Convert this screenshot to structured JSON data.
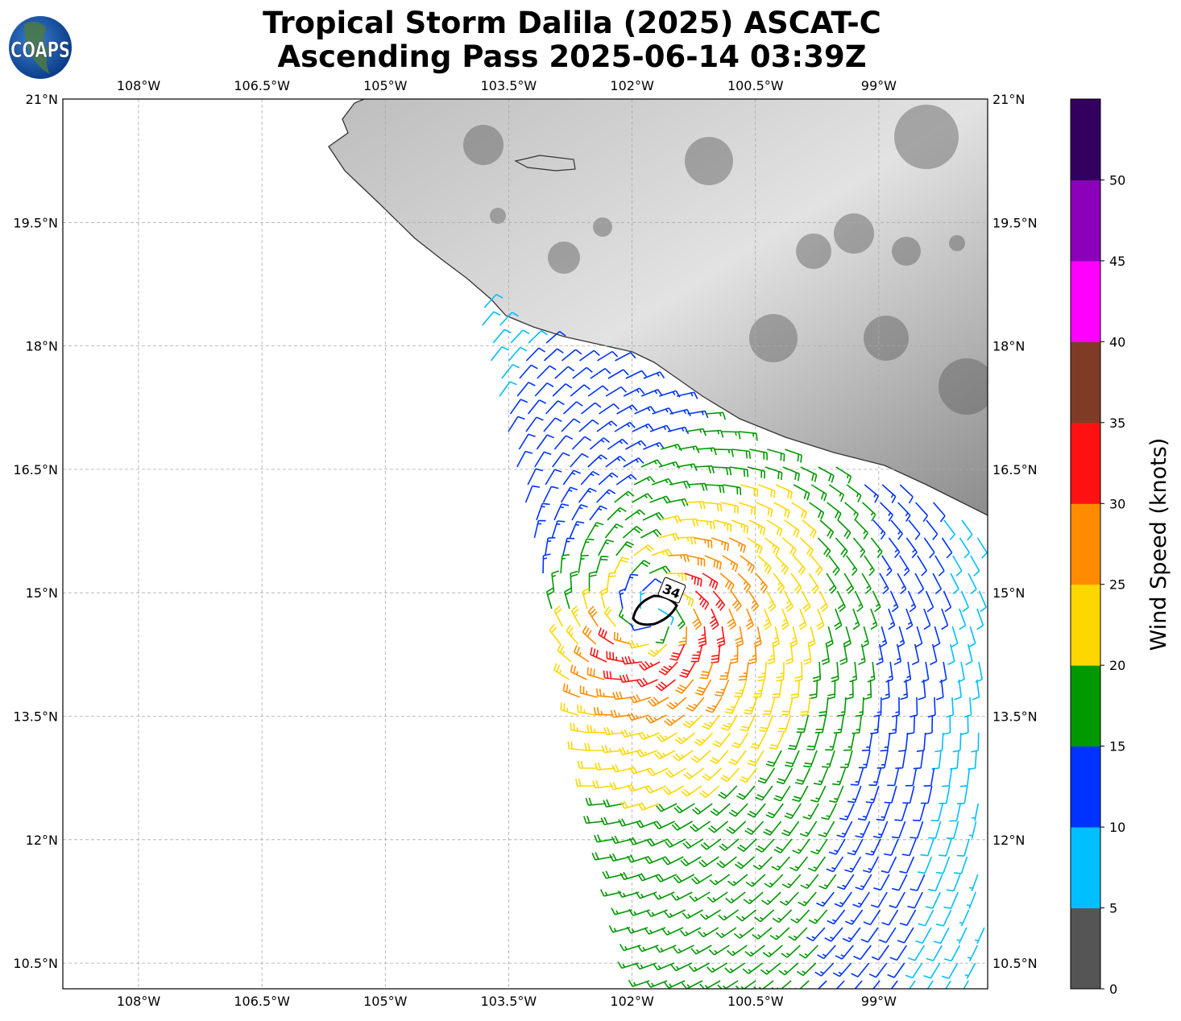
{
  "title": {
    "line1": "Tropical Storm Dalila (2025) ASCAT-C",
    "line2": "Ascending Pass 2025-06-14 03:39Z"
  },
  "logo": {
    "text": "COAPS"
  },
  "map": {
    "lon_labels": [
      "108°W",
      "106.5°W",
      "105°W",
      "103.5°W",
      "102°W",
      "100.5°W",
      "99°W"
    ],
    "lon_values": [
      108,
      106.5,
      105,
      103.5,
      102,
      100.5,
      99
    ],
    "lat_labels": [
      "21°N",
      "19.5°N",
      "18°N",
      "16.5°N",
      "15°N",
      "13.5°N",
      "12°N",
      "10.5°N"
    ],
    "lat_values": [
      21,
      19.5,
      18,
      16.5,
      15,
      13.5,
      12,
      10.5
    ],
    "contour_label": "34",
    "storm_center": {
      "lon_w": 101.75,
      "lat_n": 14.75
    }
  },
  "colorbar": {
    "label": "Wind Speed (knots)",
    "tick_labels": [
      "0",
      "5",
      "10",
      "15",
      "20",
      "25",
      "30",
      "35",
      "40",
      "45",
      "50"
    ],
    "bounds": [
      0,
      5,
      10,
      15,
      20,
      25,
      30,
      35,
      40,
      45,
      50,
      55
    ],
    "colors": [
      "#555555",
      "#00bfff",
      "#0033ff",
      "#009900",
      "#ffd700",
      "#ff8c00",
      "#ff1111",
      "#7f3b26",
      "#ff00ff",
      "#8b00b8",
      "#33005f"
    ]
  }
}
